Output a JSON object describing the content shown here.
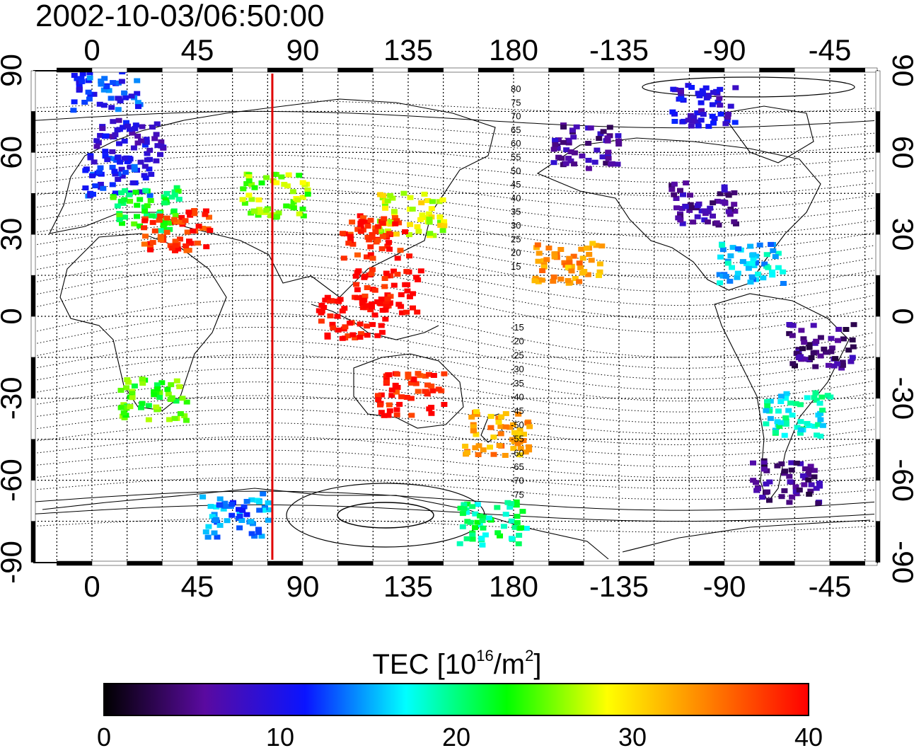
{
  "title": "2002-10-03/06:50:00",
  "map": {
    "lon_ticks": [
      "0",
      "45",
      "90",
      "135",
      "180",
      "-135",
      "-90",
      "-45"
    ],
    "lat_ticks": [
      "90",
      "60",
      "30",
      "0",
      "-30",
      "-60",
      "-90"
    ],
    "meridian_line_color": "#e00000",
    "meridian_line_longitude": 77,
    "contour_labels_north": [
      "80",
      "75",
      "70",
      "65",
      "60",
      "55",
      "50",
      "45",
      "40",
      "35",
      "30",
      "25",
      "20",
      "15"
    ],
    "contour_labels_south": [
      "-15",
      "-20",
      "-25",
      "-30",
      "-35",
      "-40",
      "-45",
      "-50",
      "-55",
      "-60",
      "-65",
      "-70",
      "-75"
    ]
  },
  "colorbar": {
    "title_main": "TEC  [10",
    "title_exp1": "16",
    "title_mid": "/m",
    "title_exp2": "2",
    "title_end": "]",
    "min": 0,
    "max": 40,
    "tick_labels": [
      "0",
      "10",
      "20",
      "30",
      "40"
    ],
    "colors": [
      "#000000",
      "#5a0aa0",
      "#0a14ff",
      "#00ffff",
      "#00ff00",
      "#ffff00",
      "#ff8000",
      "#ff0000"
    ]
  },
  "tec_regions": [
    {
      "name": "europe",
      "lon": 10,
      "lat": 52,
      "tec": 11
    },
    {
      "name": "scandinavia",
      "lon": 15,
      "lat": 65,
      "tec": 9
    },
    {
      "name": "north-atlantic-high-lat",
      "lon": 5,
      "lat": 84,
      "tec": 12
    },
    {
      "name": "mediterranean",
      "lon": 22,
      "lat": 40,
      "tec": 22
    },
    {
      "name": "middle-east",
      "lon": 35,
      "lat": 32,
      "tec": 38
    },
    {
      "name": "central-asia",
      "lon": 77,
      "lat": 45,
      "tec": 26
    },
    {
      "name": "east-asia-japan",
      "lon": 135,
      "lat": 38,
      "tec": 28
    },
    {
      "name": "china",
      "lon": 120,
      "lat": 30,
      "tec": 39
    },
    {
      "name": "southeast-asia",
      "lon": 125,
      "lat": 10,
      "tec": 40
    },
    {
      "name": "indonesia",
      "lon": 110,
      "lat": 0,
      "tec": 40
    },
    {
      "name": "australia",
      "lon": 135,
      "lat": -28,
      "tec": 39
    },
    {
      "name": "new-zealand",
      "lon": 172,
      "lat": -42,
      "tec": 33
    },
    {
      "name": "pacific-hawaii",
      "lon": -158,
      "lat": 21,
      "tec": 33
    },
    {
      "name": "north-america",
      "lon": -100,
      "lat": 42,
      "tec": 6
    },
    {
      "name": "alaska",
      "lon": -150,
      "lat": 63,
      "tec": 6
    },
    {
      "name": "canada-arctic",
      "lon": -100,
      "lat": 78,
      "tec": 9
    },
    {
      "name": "caribbean",
      "lon": -80,
      "lat": 20,
      "tec": 16
    },
    {
      "name": "south-america-north",
      "lon": -50,
      "lat": -10,
      "tec": 5
    },
    {
      "name": "south-america-south",
      "lon": -60,
      "lat": -35,
      "tec": 18
    },
    {
      "name": "patagonia",
      "lon": -65,
      "lat": -60,
      "tec": 5
    },
    {
      "name": "south-africa",
      "lon": 25,
      "lat": -30,
      "tec": 24
    },
    {
      "name": "antarctic-coast",
      "lon": 60,
      "lat": -72,
      "tec": 14
    },
    {
      "name": "antarctica-pacific",
      "lon": 170,
      "lat": -75,
      "tec": 20
    }
  ]
}
